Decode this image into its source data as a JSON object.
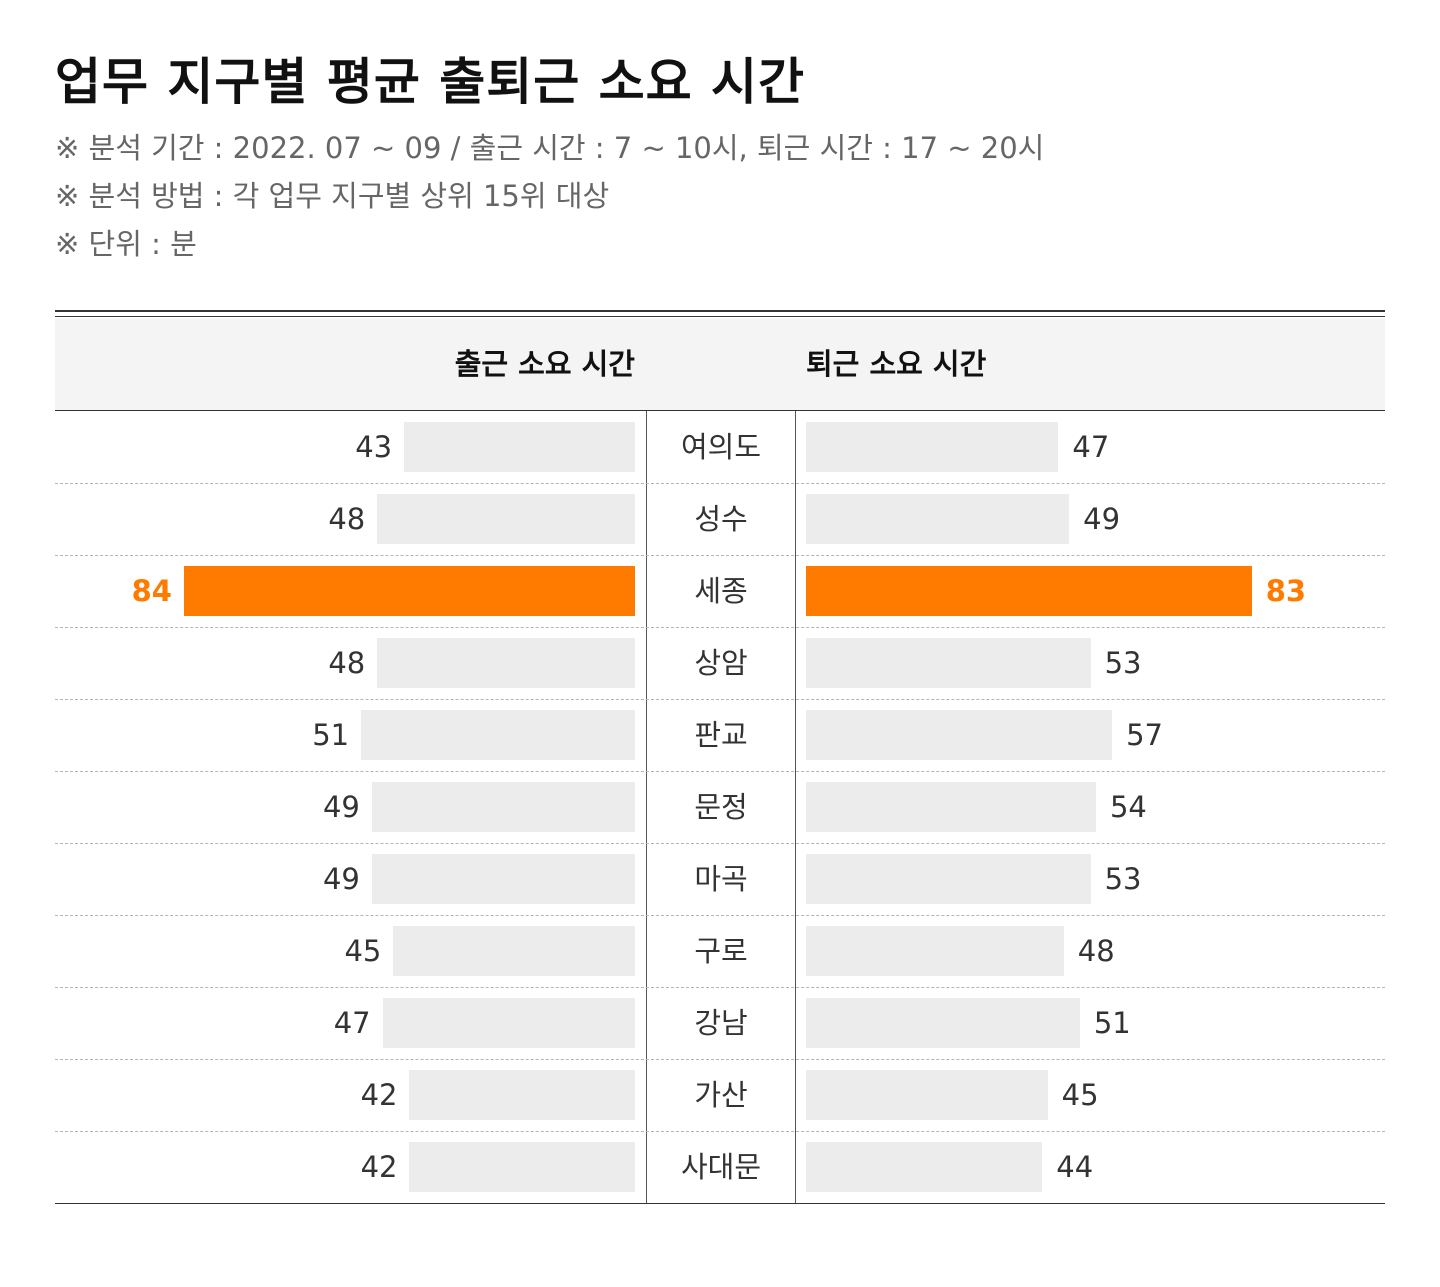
{
  "title": "업무 지구별 평균 출퇴근 소요 시간",
  "notes": [
    "※ 분석 기간 : 2022. 07 ~ 09 / 출근 시간 : 7 ~ 10시, 퇴근 시간 : 17 ~ 20시",
    "※ 분석 방법 : 각 업무 지구별 상위 15위 대상",
    "※ 단위 : 분"
  ],
  "colors": {
    "bar": "#ececec",
    "highlight": "#ff7b00"
  },
  "chart_data": {
    "type": "bar",
    "orientation": "horizontal-butterfly",
    "categories": [
      "여의도",
      "성수",
      "세종",
      "상암",
      "판교",
      "문정",
      "마곡",
      "구로",
      "강남",
      "가산",
      "사대문"
    ],
    "series": [
      {
        "name": "출근 소요 시간",
        "values": [
          43,
          48,
          84,
          48,
          51,
          49,
          49,
          45,
          47,
          42,
          42
        ]
      },
      {
        "name": "퇴근 소요 시간",
        "values": [
          47,
          49,
          83,
          53,
          57,
          54,
          53,
          48,
          51,
          45,
          44
        ]
      }
    ],
    "highlight_category": "세종",
    "xlim": [
      0,
      100
    ],
    "grid": false
  }
}
